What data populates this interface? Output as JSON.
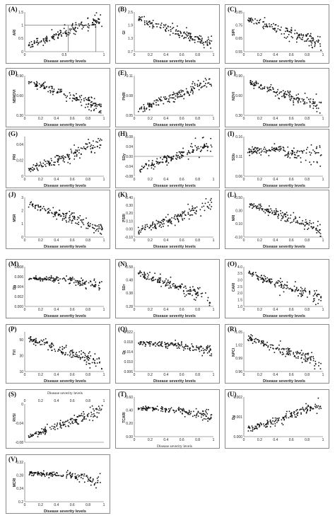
{
  "figure": {
    "xlabel_default": "Disease severity levels"
  },
  "chart_data": [
    {
      "id": "A",
      "label": "(A)",
      "type": "scatter",
      "trend": "up",
      "xlabel": "Disease severity levels",
      "ylabel": "ARI",
      "xticks": [
        0,
        0.5,
        1
      ],
      "yticks": [
        0,
        0.5,
        1,
        1.5
      ],
      "xlim": [
        0,
        1
      ],
      "ylim": [
        0,
        1.5
      ],
      "annotation_lines": {
        "y": 1.0,
        "x": [
          0.55,
          0.9
        ]
      }
    },
    {
      "id": "B",
      "label": "(B)",
      "type": "scatter",
      "trend": "down",
      "xlabel": "Disease severity levels",
      "ylabel": "GI",
      "xticks": [
        0,
        0.2,
        0.4,
        0.6,
        0.8,
        1
      ],
      "yticks": [
        0.7,
        1.3,
        1.9,
        2.5
      ],
      "xlim": [
        0,
        1
      ],
      "ylim": [
        0.7,
        2.5
      ]
    },
    {
      "id": "C",
      "label": "(C)",
      "type": "scatter",
      "trend": "down",
      "xlabel": "Disease severity levels",
      "ylabel": "SIPI",
      "xticks": [
        0,
        0.2,
        0.4,
        0.6,
        0.8,
        1
      ],
      "yticks": [
        0.55,
        0.65,
        0.75,
        0.85
      ],
      "xlim": [
        0,
        1
      ],
      "ylim": [
        0.55,
        0.85
      ]
    },
    {
      "id": "D",
      "label": "(D)",
      "type": "scatter",
      "trend": "down",
      "xlabel": "Disease severity levels",
      "ylabel": "NBNDVI",
      "xticks": [
        0,
        0.2,
        0.4,
        0.6,
        0.8,
        1
      ],
      "yticks": [
        0.3,
        0.6,
        0.9
      ],
      "ytick_labels": [
        "0.30",
        "0.60",
        "0.90"
      ],
      "xlim": [
        0,
        1
      ],
      "ylim": [
        0.3,
        0.9
      ]
    },
    {
      "id": "E",
      "label": "(E)",
      "type": "scatter",
      "trend": "up",
      "xlabel": "Disease severity levels",
      "ylabel": "PhRI",
      "xticks": [
        0,
        0.2,
        0.4,
        0.6,
        0.8,
        1
      ],
      "yticks": [
        0.05,
        0.08,
        0.11
      ],
      "xlim": [
        0,
        1
      ],
      "ylim": [
        0.05,
        0.11
      ]
    },
    {
      "id": "F",
      "label": "(F)",
      "type": "scatter",
      "trend": "down",
      "xlabel": "Disease severity levels",
      "ylabel": "NDVI",
      "xticks": [
        0,
        0.2,
        0.4,
        0.6,
        0.8,
        1
      ],
      "yticks": [
        0.3,
        0.6,
        0.9
      ],
      "ytick_labels": [
        "0.30",
        "0.60",
        "0.90"
      ],
      "xlim": [
        0,
        1
      ],
      "ylim": [
        0.3,
        0.9
      ]
    },
    {
      "id": "G",
      "label": "(G)",
      "type": "scatter",
      "trend": "up",
      "xlabel": "Disease severity levels",
      "ylabel": "PRI",
      "xticks": [
        0,
        0.2,
        0.4,
        0.6,
        0.8,
        1
      ],
      "yticks": [
        0,
        0.02,
        0.04
      ],
      "xlim": [
        0,
        1
      ],
      "ylim": [
        0,
        0.05
      ]
    },
    {
      "id": "H",
      "label": "(H)",
      "type": "scatter",
      "trend": "up",
      "xlabel": "Disease severity levels",
      "ylabel": "SDy",
      "xticks": [
        0,
        0.2,
        0.4,
        0.6,
        0.8,
        1
      ],
      "yticks": [
        -0.08,
        -0.04,
        0,
        0.04,
        0.08
      ],
      "ytick_labels": [
        "-0.08",
        "-0.04",
        "0.00",
        "0.04",
        "0.08"
      ],
      "xlim": [
        0,
        1
      ],
      "ylim": [
        -0.08,
        0.08
      ],
      "xaxis_at_zero": true
    },
    {
      "id": "I",
      "label": "(I)",
      "type": "scatter",
      "trend": "flat-scatter",
      "xlabel": "Disease severity levels",
      "ylabel": "SDb",
      "xticks": [
        0,
        0.2,
        0.4,
        0.6,
        0.8,
        1
      ],
      "yticks": [
        0.06,
        0.11,
        0.16
      ],
      "xlim": [
        0,
        1
      ],
      "ylim": [
        0.06,
        0.16
      ]
    },
    {
      "id": "J",
      "label": "(J)",
      "type": "scatter",
      "trend": "down",
      "xlabel": "Disease severity levels",
      "ylabel": "MSR",
      "xticks": [
        0,
        0.2,
        0.4,
        0.6,
        0.8,
        1
      ],
      "yticks": [
        0,
        1,
        2,
        3
      ],
      "xlim": [
        0,
        1
      ],
      "ylim": [
        0,
        3
      ]
    },
    {
      "id": "K",
      "label": "(K)",
      "type": "scatter",
      "trend": "up",
      "xlabel": "Disease severity levels",
      "ylabel": "PSRI",
      "xticks": [
        0,
        0.2,
        0.4,
        0.6,
        0.8,
        1
      ],
      "yticks": [
        -0.1,
        0,
        0.1,
        0.2,
        0.3,
        0.4
      ],
      "ytick_labels": [
        "-0.10",
        "0.00",
        "0.10",
        "0.20",
        "0.30",
        "0.40"
      ],
      "xlim": [
        0,
        1
      ],
      "ylim": [
        -0.1,
        0.4
      ]
    },
    {
      "id": "L",
      "label": "(L)",
      "type": "scatter",
      "trend": "down",
      "xlabel": "Disease severity levels",
      "ylabel": "NRI",
      "xticks": [
        0,
        0.2,
        0.4,
        0.6,
        0.8,
        1
      ],
      "yticks": [
        -0.1,
        0.1,
        0.3,
        0.5
      ],
      "ytick_labels": [
        "-0.10",
        "0.10",
        "0.30",
        "0.50"
      ],
      "xlim": [
        0,
        1
      ],
      "ylim": [
        -0.1,
        0.5
      ]
    },
    {
      "id": "M",
      "label": "(M)",
      "type": "scatter",
      "trend": "flat-down",
      "xlabel": "Disease severity levels",
      "ylabel": "Db",
      "xticks": [
        0,
        0.2,
        0.4,
        0.6,
        0.8,
        1
      ],
      "yticks": [
        0,
        0.002,
        0.004,
        0.006,
        0.008
      ],
      "ytick_labels": [
        "0.000",
        "0.002",
        "0.004",
        "0.006",
        "0.008"
      ],
      "xlim": [
        0,
        1
      ],
      "ylim": [
        0,
        0.008
      ]
    },
    {
      "id": "N",
      "label": "(N)",
      "type": "scatter",
      "trend": "down",
      "xlabel": "Disease severity levels",
      "ylabel": "SDr",
      "xticks": [
        0,
        0.2,
        0.4,
        0.6,
        0.8,
        1
      ],
      "yticks": [
        0.28,
        0.38,
        0.48,
        0.58
      ],
      "xlim": [
        0,
        1
      ],
      "ylim": [
        0.28,
        0.58
      ]
    },
    {
      "id": "O",
      "label": "(O)",
      "type": "scatter",
      "trend": "down",
      "xlabel": "Disease severity levels",
      "ylabel": "CARI",
      "xticks": [
        0,
        0.2,
        0.4,
        0.6,
        0.8,
        1
      ],
      "yticks": [
        1,
        1.5,
        2,
        2.5,
        3,
        3.5,
        4
      ],
      "ytick_labels": [
        "1.0",
        "1.5",
        "2.0",
        "2.5",
        "3.0",
        "3.5",
        "4.0"
      ],
      "xlim": [
        0,
        1
      ],
      "ylim": [
        1,
        4
      ]
    },
    {
      "id": "P",
      "label": "(P)",
      "type": "scatter",
      "trend": "down",
      "xlabel": "Disease severity levels",
      "ylabel": "TVI",
      "xticks": [
        0,
        0.2,
        0.4,
        0.6,
        0.8,
        1
      ],
      "yticks": [
        10,
        30,
        50
      ],
      "xlim": [
        0,
        1
      ],
      "ylim": [
        10,
        60
      ]
    },
    {
      "id": "Q",
      "label": "(Q)",
      "type": "scatter",
      "trend": "flat-down",
      "xlabel": "Disease severity levels",
      "ylabel": "Dr",
      "xticks": [
        0,
        0.2,
        0.4,
        0.6,
        0.8,
        1
      ],
      "yticks": [
        0.006,
        0.01,
        0.014,
        0.018,
        0.022
      ],
      "ytick_labels": [
        "0.006",
        "0.010",
        "0.014",
        "0.018",
        "0.022"
      ],
      "xlim": [
        0,
        1
      ],
      "ylim": [
        0.006,
        0.022
      ]
    },
    {
      "id": "R",
      "label": "(R)",
      "type": "scatter",
      "trend": "down",
      "xlabel": "Disease severity levels",
      "ylabel": "NPCI",
      "xticks": [
        0,
        0.2,
        0.4,
        0.6,
        0.8,
        1
      ],
      "yticks": [
        0.96,
        0.99,
        1.02,
        1.05
      ],
      "xlim": [
        0,
        1
      ],
      "ylim": [
        0.96,
        1.05
      ]
    },
    {
      "id": "S",
      "label": "(S)",
      "type": "scatter",
      "trend": "up",
      "xlabel": "Disease severity levels",
      "xlabel_position": "top",
      "ylabel": "RVSI",
      "xticks": [
        0,
        0.2,
        0.4,
        0.6,
        0.8,
        1
      ],
      "yticks": [
        -0.08,
        -0.04,
        0
      ],
      "xlim": [
        0,
        1
      ],
      "ylim": [
        -0.08,
        0
      ]
    },
    {
      "id": "T",
      "label": "(T)",
      "type": "scatter",
      "trend": "flat-down",
      "xlabel": "Disease severity levels",
      "xlabel_style": "serif",
      "ylabel": "TCARI",
      "xticks": [
        0,
        0.2,
        0.4,
        0.6,
        0.8,
        1
      ],
      "yticks": [
        0,
        0.2,
        0.4,
        0.6
      ],
      "ytick_labels": [
        "0.00",
        "0.20",
        "0.40",
        "0.60"
      ],
      "xlim": [
        0,
        1
      ],
      "ylim": [
        0,
        0.6
      ]
    },
    {
      "id": "U",
      "label": "(U)",
      "type": "scatter",
      "trend": "up",
      "xlabel": "",
      "ylabel": "Dy",
      "xticks": [
        0,
        0.2,
        0.4,
        0.6,
        0.8,
        1
      ],
      "yticks": [
        0,
        0.001,
        0.002
      ],
      "ytick_labels": [
        "0.000",
        "0.001",
        "0.002"
      ],
      "xlim": [
        0,
        1
      ],
      "ylim": [
        0,
        0.002
      ]
    },
    {
      "id": "V",
      "label": "(V)",
      "type": "scatter",
      "trend": "flat-down",
      "xlabel": "Disease severity levels",
      "ylabel": "MCRI",
      "xticks": [
        0,
        0.2,
        0.4,
        0.6,
        0.8,
        1
      ],
      "yticks": [
        0.2,
        0.24,
        0.28,
        0.32
      ],
      "xlim": [
        0,
        1
      ],
      "ylim": [
        0.2,
        0.32
      ]
    }
  ]
}
